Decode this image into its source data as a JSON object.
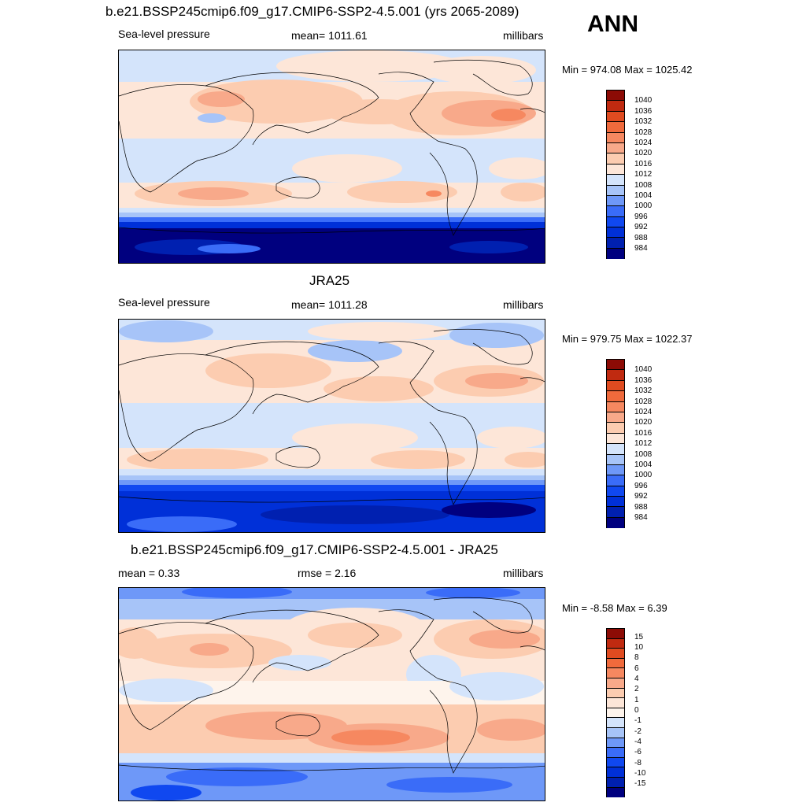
{
  "season": "ANN",
  "colors": {
    "abs_scale": [
      "#00007f",
      "#0020b0",
      "#0030d8",
      "#1048f0",
      "#3a6cf8",
      "#6e98f8",
      "#a7c4f8",
      "#d4e4fb",
      "#fde6d8",
      "#fcccb0",
      "#f8a98a",
      "#f68860",
      "#f06a3c",
      "#e04b20",
      "#c02a10",
      "#8c0b05"
    ],
    "diff_scale": [
      "#00007f",
      "#0020b0",
      "#0030d8",
      "#1048f0",
      "#3a6cf8",
      "#6e98f8",
      "#a7c4f8",
      "#d4e4fb",
      "#fef4ec",
      "#fde6d8",
      "#fcccb0",
      "#f8a98a",
      "#f68860",
      "#f06a3c",
      "#e04b20",
      "#c02a10",
      "#8c0b05"
    ]
  },
  "panels": [
    {
      "title": "b.e21.BSSP245cmip6.f09_g17.CMIP6-SSP2-4.5.001 (yrs 2065-2089)",
      "left_label": "Sea-level pressure",
      "center_label": "mean= 1011.61",
      "right_label": "millibars",
      "minmax": "Min = 974.08 Max = 1025.42",
      "colorbar_labels": [
        "1040",
        "1036",
        "1032",
        "1028",
        "1024",
        "1020",
        "1016",
        "1012",
        "1008",
        "1004",
        "1000",
        "996",
        "992",
        "988",
        "984"
      ]
    },
    {
      "title": "JRA25",
      "left_label": "Sea-level pressure",
      "center_label": "mean= 1011.28",
      "right_label": "millibars",
      "minmax": "Min = 979.75 Max = 1022.37",
      "colorbar_labels": [
        "1040",
        "1036",
        "1032",
        "1028",
        "1024",
        "1020",
        "1016",
        "1012",
        "1008",
        "1004",
        "1000",
        "996",
        "992",
        "988",
        "984"
      ]
    },
    {
      "title": "b.e21.BSSP245cmip6.f09_g17.CMIP6-SSP2-4.5.001 - JRA25",
      "left_label": "mean =   0.33",
      "center_label": "rmse =   2.16",
      "right_label": "millibars",
      "minmax": "Min =  -8.58 Max =   6.39",
      "colorbar_labels": [
        "15",
        "10",
        "8",
        "6",
        "4",
        "2",
        "1",
        "0",
        "-1",
        "-2",
        "-4",
        "-6",
        "-8",
        "-10",
        "-15"
      ]
    }
  ]
}
